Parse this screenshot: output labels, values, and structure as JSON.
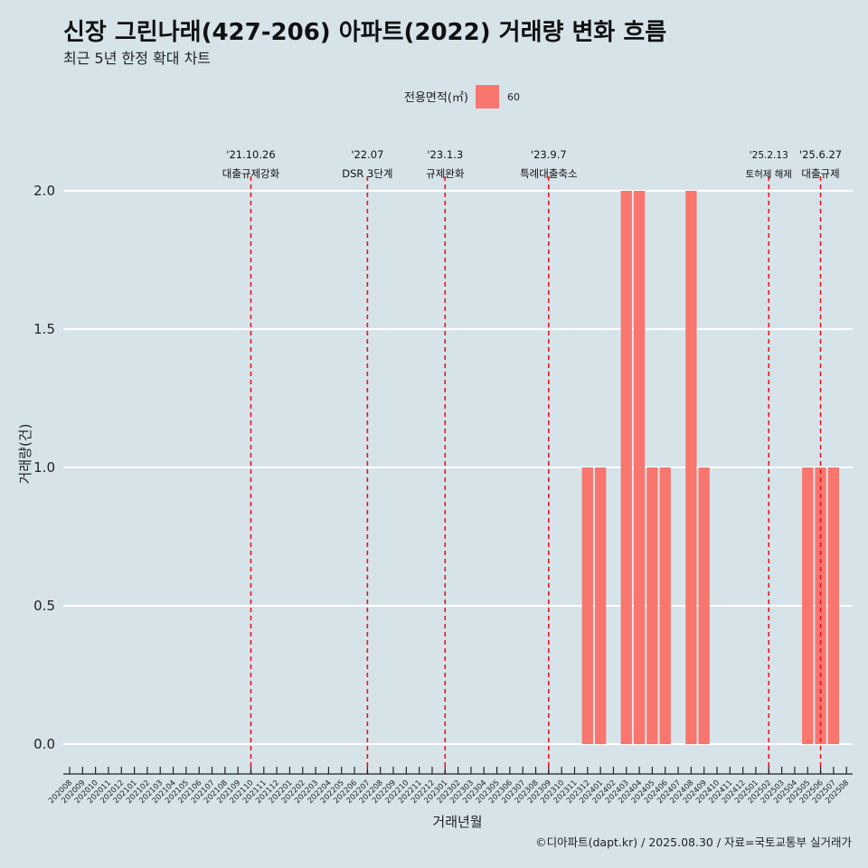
{
  "title": "신장 그린나래(427-206) 아파트(2022) 거래량 변화 흐름",
  "subtitle": "최근 5년 한정 확대 차트",
  "caption": "©디아파트(dapt.kr) / 2025.08.30 / 자료=국토교통부 실거래가",
  "colors": {
    "background": "#d6e4ea",
    "bar": "#f8766d",
    "event_line": "#e8141a",
    "grid": "#ffffff"
  },
  "chart_data": {
    "type": "bar",
    "xlabel": "거래년월",
    "ylabel": "거래량(건)",
    "ylim": [
      0,
      2
    ],
    "yticks": [
      "0.0",
      "0.5",
      "1.0",
      "1.5",
      "2.0"
    ],
    "grid": true,
    "legend": {
      "title": "전용면적(㎡)",
      "position": "top",
      "entries": [
        "60"
      ]
    },
    "categories": [
      "202008",
      "202009",
      "202010",
      "202011",
      "202012",
      "202101",
      "202102",
      "202103",
      "202104",
      "202105",
      "202106",
      "202107",
      "202108",
      "202109",
      "202110",
      "202111",
      "202112",
      "202201",
      "202202",
      "202203",
      "202204",
      "202205",
      "202206",
      "202207",
      "202208",
      "202209",
      "202210",
      "202211",
      "202212",
      "202301",
      "202302",
      "202303",
      "202304",
      "202305",
      "202306",
      "202307",
      "202308",
      "202309",
      "202310",
      "202311",
      "202312",
      "202401",
      "202402",
      "202403",
      "202404",
      "202405",
      "202406",
      "202407",
      "202408",
      "202409",
      "202410",
      "202411",
      "202412",
      "202501",
      "202502",
      "202503",
      "202504",
      "202505",
      "202506",
      "202507",
      "202508"
    ],
    "series": [
      {
        "name": "60",
        "values": [
          0,
          0,
          0,
          0,
          0,
          0,
          0,
          0,
          0,
          0,
          0,
          0,
          0,
          0,
          0,
          0,
          0,
          0,
          0,
          0,
          0,
          0,
          0,
          0,
          0,
          0,
          0,
          0,
          0,
          0,
          0,
          0,
          0,
          0,
          0,
          0,
          0,
          0,
          0,
          0,
          1,
          1,
          0,
          2,
          2,
          1,
          1,
          0,
          2,
          1,
          0,
          0,
          0,
          0,
          0,
          0,
          0,
          1,
          1,
          1,
          0
        ]
      }
    ],
    "events": [
      {
        "month": "202110",
        "date": "'21.10.26",
        "label": "대출규제강화"
      },
      {
        "month": "202207",
        "date": "'22.07",
        "label": "DSR 3단계"
      },
      {
        "month": "202301",
        "date": "'23.1.3",
        "label": "규제완화"
      },
      {
        "month": "202309",
        "date": "'23.9.7",
        "label": "특례대출축소"
      },
      {
        "month": "202502",
        "date": "'25.2.13",
        "label": "토허제 해제"
      },
      {
        "month": "202506",
        "date": "'25.6.27",
        "label": "대출규제"
      }
    ]
  }
}
